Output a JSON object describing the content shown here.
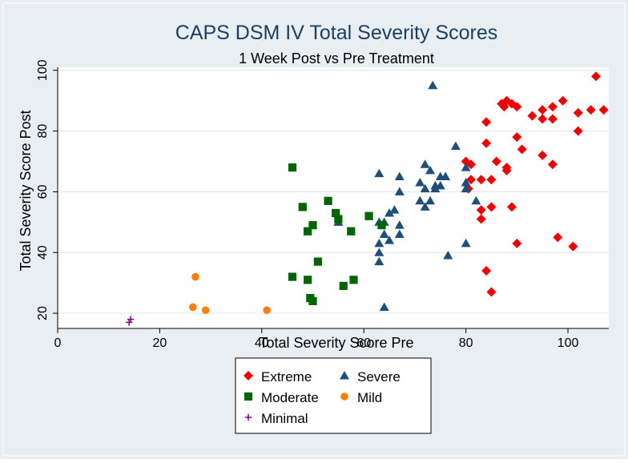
{
  "chart_data": {
    "type": "scatter",
    "title": "CAPS DSM IV Total Severity Scores",
    "subtitle": "1 Week Post vs Pre Treatment",
    "xlabel": "Total Severity Score Pre",
    "ylabel": "Total Severity Score Post",
    "xlim": [
      0,
      108
    ],
    "ylim": [
      15,
      101
    ],
    "xticks": [
      "0",
      "20",
      "40",
      "60",
      "80",
      "100"
    ],
    "yticks": [
      "20",
      "40",
      "60",
      "80",
      "100"
    ],
    "grid": true,
    "legend_position": "bottom",
    "series": [
      {
        "name": "Extreme",
        "marker": "diamond",
        "color": "#ee0000",
        "points": [
          [
            105.5,
            98
          ],
          [
            99,
            90
          ],
          [
            97,
            88
          ],
          [
            95,
            87
          ],
          [
            95,
            84
          ],
          [
            93,
            85
          ],
          [
            90,
            88
          ],
          [
            89,
            89
          ],
          [
            88,
            90
          ],
          [
            87.5,
            88
          ],
          [
            87,
            89
          ],
          [
            90,
            78
          ],
          [
            91,
            74
          ],
          [
            97,
            84
          ],
          [
            102,
            86
          ],
          [
            104.5,
            87
          ],
          [
            107,
            87
          ],
          [
            102,
            80
          ],
          [
            95,
            72
          ],
          [
            97,
            69
          ],
          [
            86,
            70
          ],
          [
            88,
            68
          ],
          [
            88,
            67
          ],
          [
            81,
            69
          ],
          [
            80,
            70
          ],
          [
            84,
            76
          ],
          [
            84,
            83
          ],
          [
            81,
            64
          ],
          [
            83,
            64
          ],
          [
            85,
            64
          ],
          [
            80.5,
            61
          ],
          [
            83,
            54
          ],
          [
            83,
            51
          ],
          [
            85,
            55
          ],
          [
            89,
            55
          ],
          [
            98,
            45
          ],
          [
            101,
            42
          ],
          [
            90,
            43
          ],
          [
            84,
            34
          ],
          [
            85,
            27
          ]
        ]
      },
      {
        "name": "Severe",
        "marker": "triangle",
        "color": "#1f4e79",
        "points": [
          [
            73.5,
            95
          ],
          [
            78,
            75
          ],
          [
            80,
            68
          ],
          [
            72,
            69
          ],
          [
            73,
            67
          ],
          [
            75,
            65
          ],
          [
            76,
            65
          ],
          [
            67,
            65
          ],
          [
            71,
            63
          ],
          [
            72,
            61
          ],
          [
            74,
            62
          ],
          [
            73,
            57
          ],
          [
            74,
            61
          ],
          [
            75,
            62
          ],
          [
            80,
            63
          ],
          [
            80,
            61
          ],
          [
            82,
            57
          ],
          [
            63,
            66
          ],
          [
            67,
            60
          ],
          [
            65,
            53
          ],
          [
            66,
            54
          ],
          [
            64,
            50
          ],
          [
            67,
            49
          ],
          [
            71,
            57
          ],
          [
            72,
            55
          ],
          [
            64,
            46
          ],
          [
            65,
            44
          ],
          [
            67,
            46
          ],
          [
            63,
            40
          ],
          [
            63,
            37
          ],
          [
            63,
            43
          ],
          [
            76.5,
            39
          ],
          [
            80,
            43
          ],
          [
            64,
            22
          ],
          [
            55,
            50
          ],
          [
            63,
            50
          ]
        ]
      },
      {
        "name": "Moderate",
        "marker": "square",
        "color": "#006400",
        "points": [
          [
            46,
            68
          ],
          [
            48,
            55
          ],
          [
            53,
            57
          ],
          [
            54.5,
            53
          ],
          [
            55,
            51
          ],
          [
            49,
            47
          ],
          [
            50,
            49
          ],
          [
            57.5,
            47
          ],
          [
            51,
            37
          ],
          [
            46,
            32
          ],
          [
            49,
            31
          ],
          [
            56,
            29
          ],
          [
            58,
            31
          ],
          [
            49.5,
            25
          ],
          [
            50,
            24
          ],
          [
            61,
            52
          ],
          [
            63.5,
            49
          ]
        ]
      },
      {
        "name": "Mild",
        "marker": "circle",
        "color": "#ff7f0e",
        "points": [
          [
            27,
            32
          ],
          [
            26.5,
            22
          ],
          [
            29,
            21
          ],
          [
            41,
            21
          ]
        ]
      },
      {
        "name": "Minimal",
        "marker": "plus",
        "color": "#800080",
        "points": [
          [
            14,
            17
          ],
          [
            14.3,
            18
          ]
        ]
      }
    ]
  }
}
